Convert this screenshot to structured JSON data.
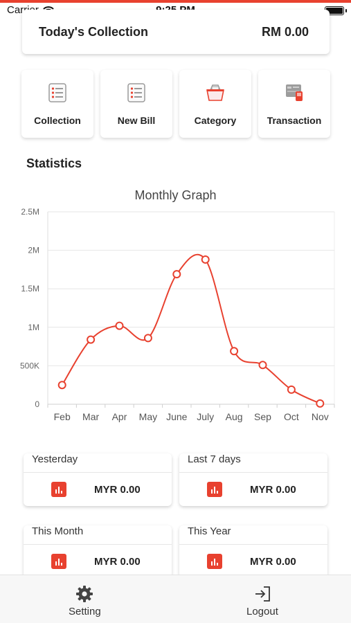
{
  "status_bar": {
    "carrier": "Carrier",
    "time": "9:25 PM"
  },
  "today": {
    "label": "Today's Collection",
    "amount": "RM 0.00"
  },
  "quick_actions": [
    {
      "label": "Collection",
      "icon": "list-icon"
    },
    {
      "label": "New Bill",
      "icon": "list-icon"
    },
    {
      "label": "Category",
      "icon": "basket-icon"
    },
    {
      "label": "Transaction",
      "icon": "card-icon"
    }
  ],
  "statistics_title": "Statistics",
  "chart_data": {
    "type": "line",
    "title": "Monthly Graph",
    "categories": [
      "Feb",
      "Mar",
      "Apr",
      "May",
      "June",
      "July",
      "Aug",
      "Sep",
      "Oct",
      "Nov"
    ],
    "series": [
      {
        "values": [
          250000,
          840000,
          1020000,
          860000,
          1690000,
          1880000,
          690000,
          510000,
          190000,
          10000
        ]
      }
    ],
    "ylim": [
      0,
      2500000
    ],
    "yticks": [
      0,
      500000,
      1000000,
      1500000,
      2000000,
      2500000
    ],
    "ytick_labels": [
      "0",
      "500K",
      "1M",
      "1.5M",
      "2M",
      "2.5M"
    ],
    "grid": true,
    "color": "#e8412f"
  },
  "stats": [
    {
      "label": "Yesterday",
      "value": "MYR 0.00"
    },
    {
      "label": "Last 7 days",
      "value": "MYR 0.00"
    },
    {
      "label": "This Month",
      "value": "MYR 0.00"
    },
    {
      "label": "This Year",
      "value": "MYR 0.00"
    }
  ],
  "nav": {
    "setting": "Setting",
    "logout": "Logout"
  },
  "colors": {
    "accent": "#e8412f"
  }
}
